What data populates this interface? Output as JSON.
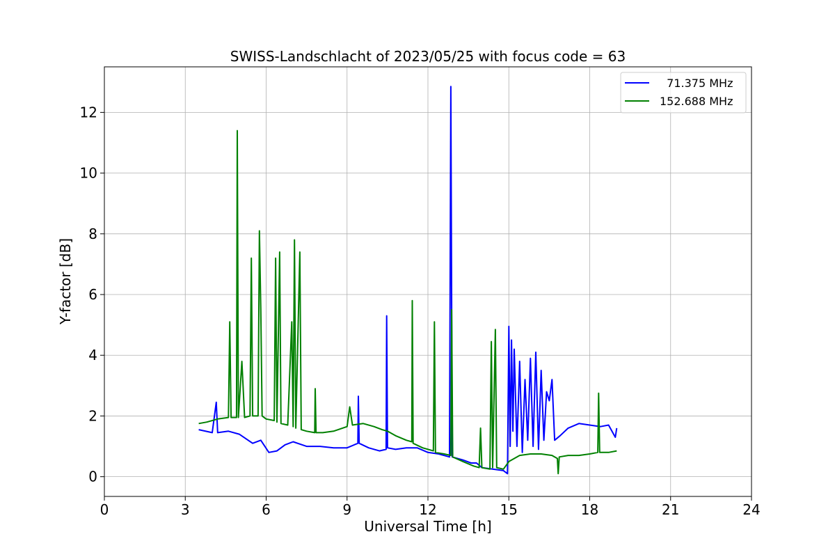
{
  "chart_data": {
    "type": "line",
    "title": "SWISS-Landschlacht of 2023/05/25 with focus code = 63",
    "xlabel": "Universal Time [h]",
    "ylabel": "Y-factor [dB]",
    "xlim": [
      0,
      24
    ],
    "ylim": [
      -0.65,
      13.5
    ],
    "xticks": [
      0,
      3,
      6,
      9,
      12,
      15,
      18,
      21,
      24
    ],
    "yticks": [
      0,
      2,
      4,
      6,
      8,
      10,
      12
    ],
    "grid": true,
    "legend_position": "top-right",
    "series": [
      {
        "name": "  71.375 MHz",
        "color": "#0000ff",
        "points": [
          [
            3.5,
            1.55
          ],
          [
            4.0,
            1.45
          ],
          [
            4.15,
            2.45
          ],
          [
            4.2,
            1.45
          ],
          [
            4.6,
            1.5
          ],
          [
            5.0,
            1.4
          ],
          [
            5.5,
            1.1
          ],
          [
            5.8,
            1.2
          ],
          [
            6.1,
            0.8
          ],
          [
            6.4,
            0.85
          ],
          [
            6.7,
            1.05
          ],
          [
            7.0,
            1.15
          ],
          [
            7.5,
            1.0
          ],
          [
            8.0,
            1.0
          ],
          [
            8.5,
            0.95
          ],
          [
            9.0,
            0.95
          ],
          [
            9.4,
            1.1
          ],
          [
            9.42,
            2.65
          ],
          [
            9.45,
            1.1
          ],
          [
            9.8,
            0.95
          ],
          [
            10.2,
            0.85
          ],
          [
            10.45,
            0.9
          ],
          [
            10.47,
            5.3
          ],
          [
            10.5,
            0.95
          ],
          [
            10.8,
            0.9
          ],
          [
            11.2,
            0.95
          ],
          [
            11.6,
            0.95
          ],
          [
            12.0,
            0.8
          ],
          [
            12.4,
            0.75
          ],
          [
            12.8,
            0.65
          ],
          [
            12.85,
            12.85
          ],
          [
            12.9,
            0.65
          ],
          [
            13.3,
            0.55
          ],
          [
            13.6,
            0.45
          ],
          [
            13.8,
            0.45
          ],
          [
            14.0,
            0.3
          ],
          [
            14.4,
            0.25
          ],
          [
            14.8,
            0.2
          ],
          [
            14.95,
            0.1
          ],
          [
            15.0,
            4.95
          ],
          [
            15.05,
            1.0
          ],
          [
            15.1,
            4.5
          ],
          [
            15.15,
            1.5
          ],
          [
            15.2,
            4.2
          ],
          [
            15.3,
            1.0
          ],
          [
            15.4,
            3.8
          ],
          [
            15.5,
            0.8
          ],
          [
            15.6,
            3.2
          ],
          [
            15.7,
            1.2
          ],
          [
            15.8,
            3.9
          ],
          [
            15.9,
            1.0
          ],
          [
            16.0,
            4.1
          ],
          [
            16.1,
            0.9
          ],
          [
            16.2,
            3.5
          ],
          [
            16.3,
            1.2
          ],
          [
            16.4,
            2.8
          ],
          [
            16.5,
            2.5
          ],
          [
            16.6,
            3.2
          ],
          [
            16.7,
            1.2
          ],
          [
            16.9,
            1.35
          ],
          [
            17.2,
            1.6
          ],
          [
            17.6,
            1.75
          ],
          [
            18.0,
            1.7
          ],
          [
            18.4,
            1.65
          ],
          [
            18.7,
            1.7
          ],
          [
            18.95,
            1.3
          ],
          [
            19.0,
            1.6
          ]
        ]
      },
      {
        "name": "152.688 MHz",
        "color": "#008000",
        "points": [
          [
            3.5,
            1.75
          ],
          [
            3.8,
            1.8
          ],
          [
            4.2,
            1.9
          ],
          [
            4.6,
            1.95
          ],
          [
            4.65,
            5.1
          ],
          [
            4.7,
            1.95
          ],
          [
            4.9,
            1.95
          ],
          [
            4.93,
            11.4
          ],
          [
            4.97,
            1.95
          ],
          [
            5.1,
            3.8
          ],
          [
            5.2,
            1.95
          ],
          [
            5.4,
            2.0
          ],
          [
            5.45,
            7.2
          ],
          [
            5.5,
            2.0
          ],
          [
            5.7,
            2.0
          ],
          [
            5.75,
            8.1
          ],
          [
            5.8,
            5.5
          ],
          [
            5.85,
            2.0
          ],
          [
            6.0,
            1.9
          ],
          [
            6.3,
            1.85
          ],
          [
            6.35,
            7.2
          ],
          [
            6.4,
            1.8
          ],
          [
            6.5,
            7.4
          ],
          [
            6.55,
            1.75
          ],
          [
            6.8,
            1.7
          ],
          [
            6.95,
            5.1
          ],
          [
            7.0,
            1.65
          ],
          [
            7.05,
            7.8
          ],
          [
            7.1,
            1.6
          ],
          [
            7.25,
            7.4
          ],
          [
            7.3,
            1.55
          ],
          [
            7.5,
            1.5
          ],
          [
            7.8,
            1.45
          ],
          [
            7.82,
            2.9
          ],
          [
            7.85,
            1.45
          ],
          [
            8.1,
            1.45
          ],
          [
            8.5,
            1.5
          ],
          [
            9.0,
            1.65
          ],
          [
            9.1,
            2.3
          ],
          [
            9.2,
            1.7
          ],
          [
            9.6,
            1.75
          ],
          [
            10.0,
            1.65
          ],
          [
            10.3,
            1.55
          ],
          [
            10.5,
            1.5
          ],
          [
            10.8,
            1.35
          ],
          [
            11.2,
            1.2
          ],
          [
            11.4,
            1.15
          ],
          [
            11.42,
            5.8
          ],
          [
            11.45,
            1.1
          ],
          [
            11.8,
            0.95
          ],
          [
            12.2,
            0.85
          ],
          [
            12.24,
            5.1
          ],
          [
            12.28,
            0.8
          ],
          [
            12.6,
            0.75
          ],
          [
            12.85,
            0.7
          ],
          [
            12.88,
            5.5
          ],
          [
            12.92,
            0.65
          ],
          [
            13.3,
            0.5
          ],
          [
            13.7,
            0.35
          ],
          [
            13.9,
            0.3
          ],
          [
            13.95,
            1.6
          ],
          [
            14.0,
            0.3
          ],
          [
            14.3,
            0.25
          ],
          [
            14.35,
            4.45
          ],
          [
            14.4,
            0.3
          ],
          [
            14.5,
            4.85
          ],
          [
            14.55,
            0.3
          ],
          [
            14.8,
            0.25
          ],
          [
            15.0,
            0.5
          ],
          [
            15.4,
            0.7
          ],
          [
            15.8,
            0.75
          ],
          [
            16.2,
            0.75
          ],
          [
            16.6,
            0.7
          ],
          [
            16.8,
            0.6
          ],
          [
            16.83,
            0.1
          ],
          [
            16.87,
            0.65
          ],
          [
            17.2,
            0.7
          ],
          [
            17.6,
            0.7
          ],
          [
            18.0,
            0.75
          ],
          [
            18.3,
            0.8
          ],
          [
            18.33,
            2.75
          ],
          [
            18.37,
            0.8
          ],
          [
            18.7,
            0.8
          ],
          [
            19.0,
            0.85
          ]
        ]
      }
    ]
  }
}
